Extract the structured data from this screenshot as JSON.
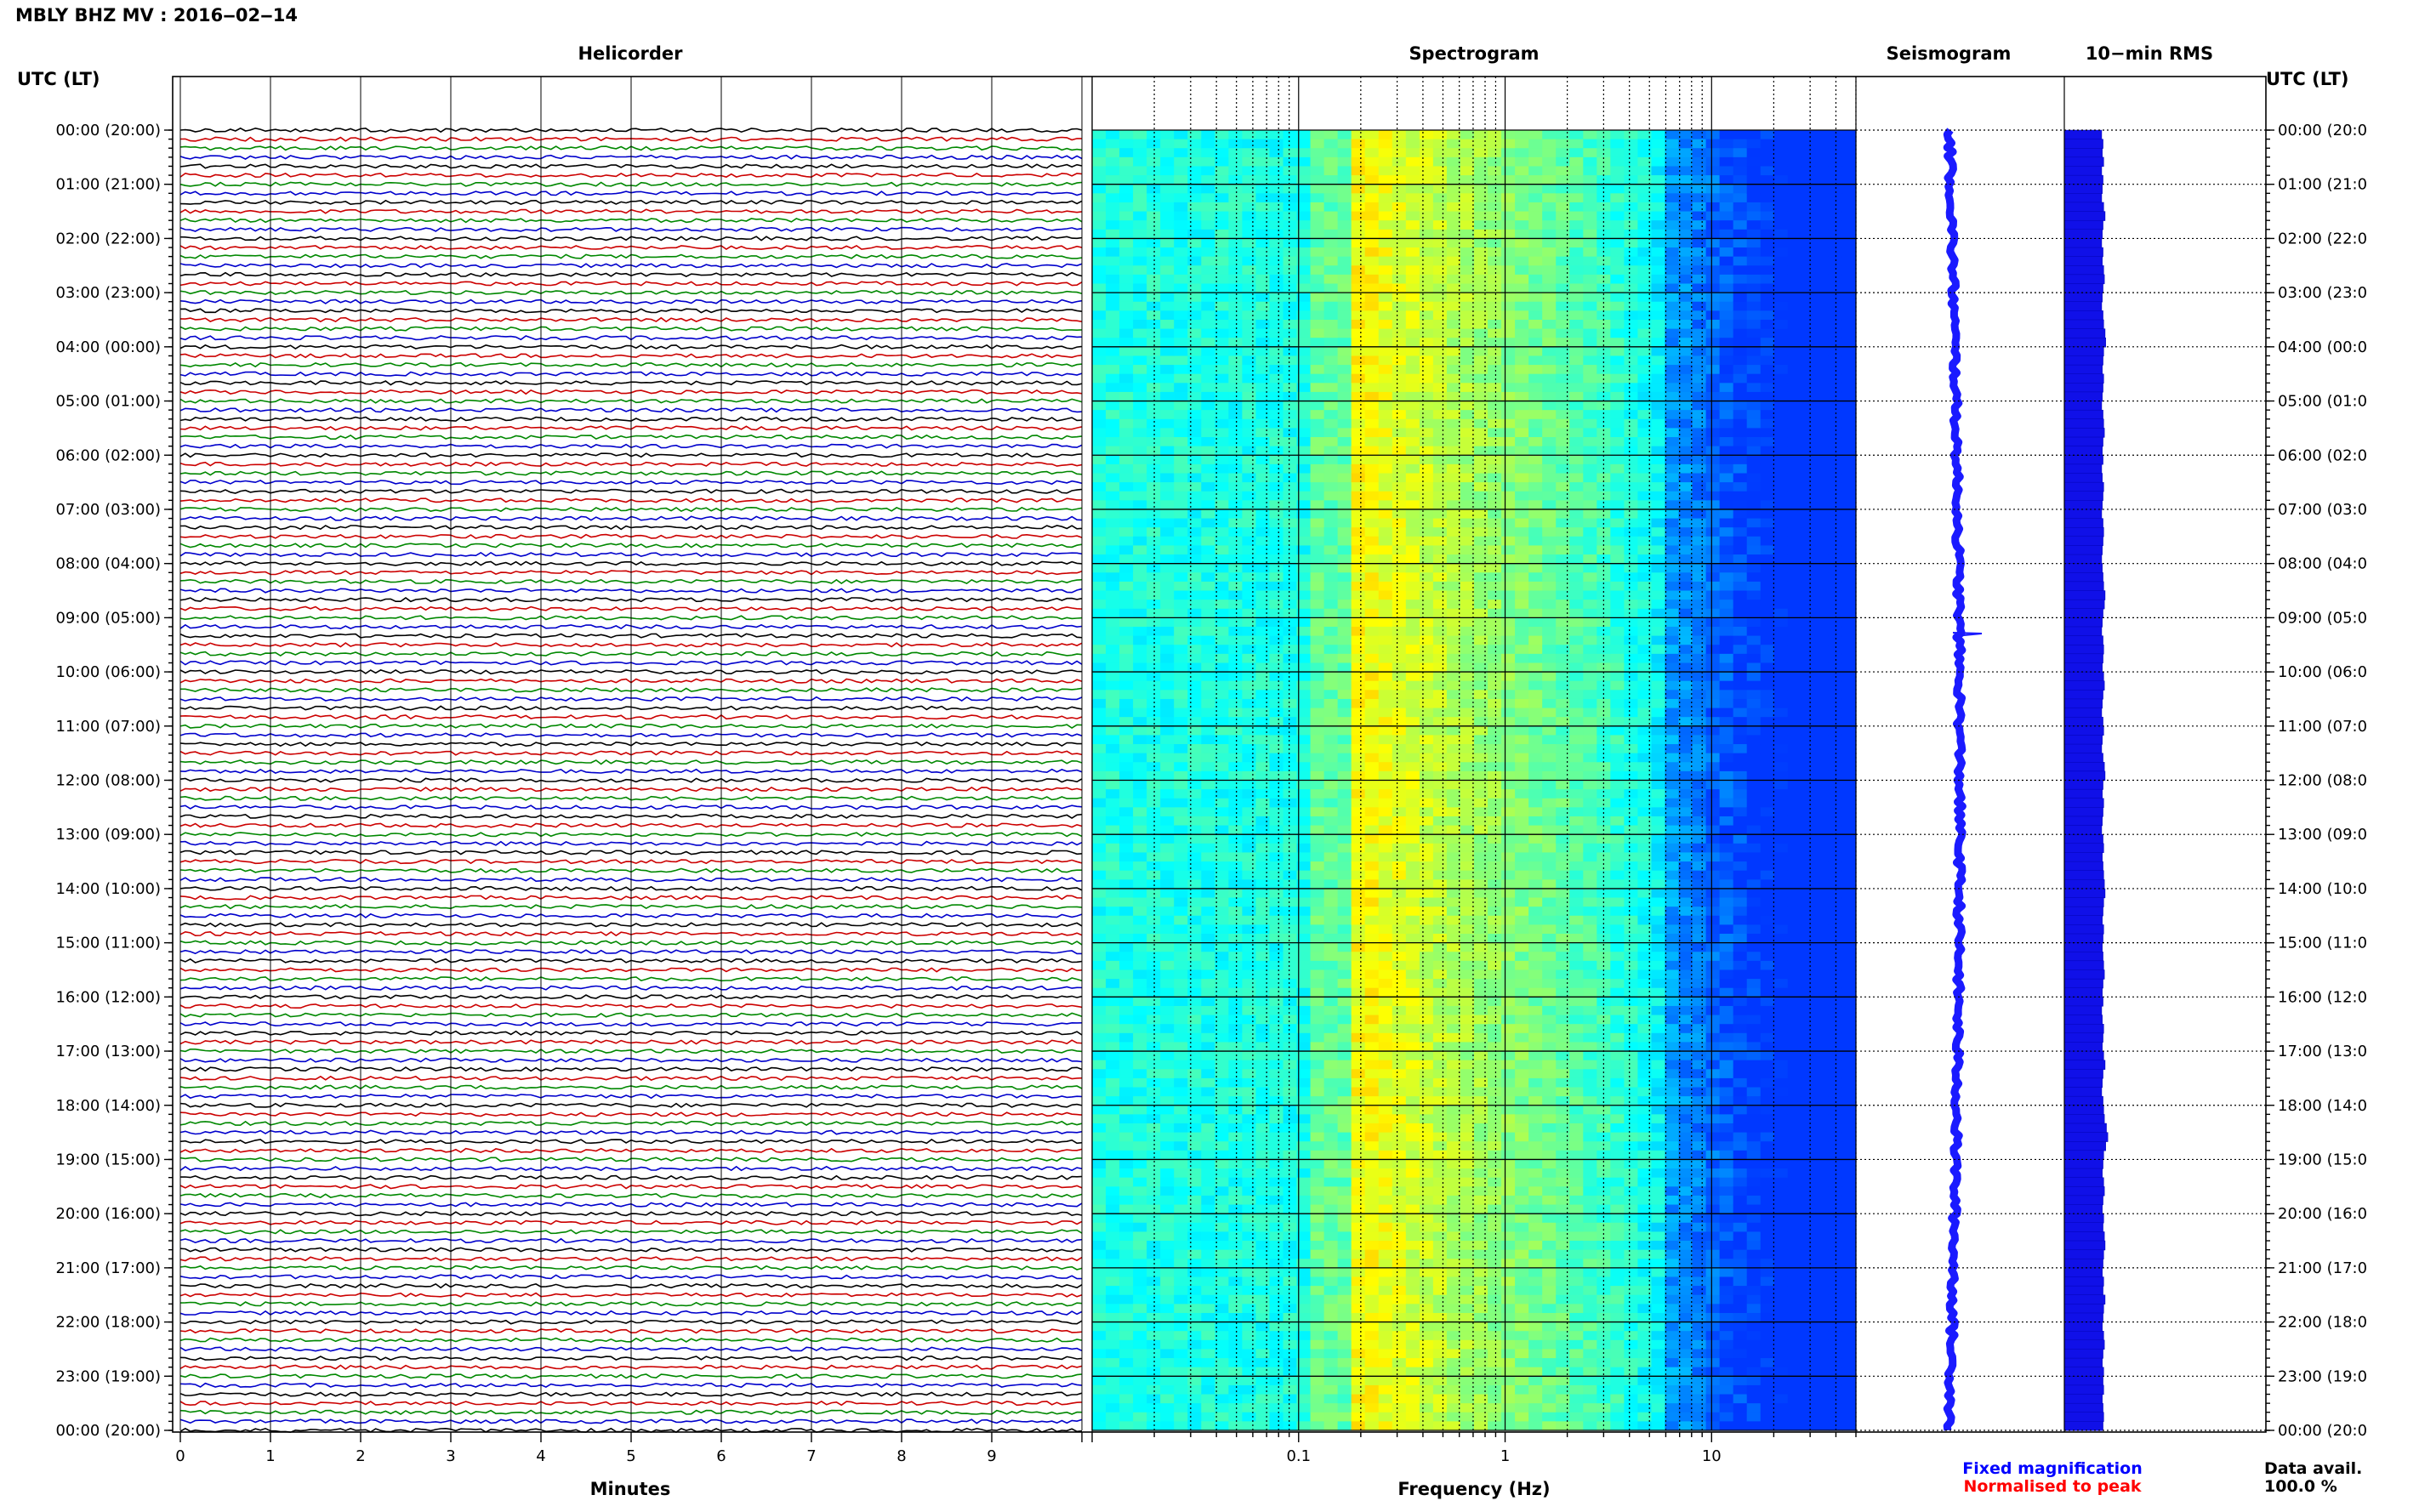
{
  "header": {
    "station_title": "MBLY BHZ MV : 2016‒02‒14"
  },
  "panels": {
    "helicorder": "Helicorder",
    "spectrogram": "Spectrogram",
    "seismogram": "Seismogram",
    "rms": "10−min RMS"
  },
  "axis": {
    "time_label": "UTC (LT)",
    "minutes_label": "Minutes",
    "frequency_label": "Frequency (Hz)"
  },
  "legend": {
    "fixed": "Fixed magnification",
    "normalised": "Normalised to peak",
    "fixed_color": "#0000ff",
    "normalised_color": "#ff0000"
  },
  "data_avail": {
    "label": "Data avail.",
    "value": "100.0 %"
  },
  "colors": {
    "trace_cycle": [
      "#000000",
      "#cc0000",
      "#008800",
      "#0000cc"
    ],
    "seismogram": "#1a1aff",
    "rms_bar": "#1010e8"
  },
  "chart_data": {
    "type": "helicorder",
    "time_ticks": [
      "00:00 (20:00)",
      "01:00 (21:00)",
      "02:00 (22:00)",
      "03:00 (23:00)",
      "04:00 (00:00)",
      "05:00 (01:00)",
      "06:00 (02:00)",
      "07:00 (03:00)",
      "08:00 (04:00)",
      "09:00 (05:00)",
      "10:00 (06:00)",
      "11:00 (07:00)",
      "12:00 (08:00)",
      "13:00 (09:00)",
      "14:00 (10:00)",
      "15:00 (11:00)",
      "16:00 (12:00)",
      "17:00 (13:00)",
      "18:00 (14:00)",
      "19:00 (15:00)",
      "20:00 (16:00)",
      "21:00 (17:00)",
      "22:00 (18:00)",
      "23:00 (19:00)",
      "00:00 (20:00)"
    ],
    "time_ticks_right": [
      "00:00 (20:0",
      "01:00 (21:0",
      "02:00 (22:0",
      "03:00 (23:0",
      "04:00 (00:0",
      "05:00 (01:0",
      "06:00 (02:0",
      "07:00 (03:0",
      "08:00 (04:0",
      "09:00 (05:0",
      "10:00 (06:0",
      "11:00 (07:0",
      "12:00 (08:0",
      "13:00 (09:0",
      "14:00 (10:0",
      "15:00 (11:0",
      "16:00 (12:0",
      "17:00 (13:0",
      "18:00 (14:0",
      "19:00 (15:0",
      "20:00 (16:0",
      "21:00 (17:0",
      "22:00 (18:0",
      "23:00 (19:0",
      "00:00 (20:0"
    ],
    "minutes_ticks": [
      "0",
      "1",
      "2",
      "3",
      "4",
      "5",
      "6",
      "7",
      "8",
      "9"
    ],
    "minutes_range": [
      0,
      10
    ],
    "traces_per_hour": 6,
    "total_traces": 144,
    "freq_ticks": [
      {
        "value": 0.1,
        "label": "0.1"
      },
      {
        "value": 1,
        "label": "1"
      },
      {
        "value": 10,
        "label": "10"
      }
    ],
    "freq_range": [
      0.01,
      50
    ],
    "freq_scale": "log",
    "spectrogram_note_peak_hz": 0.2,
    "rms_values": [
      0.55,
      0.57,
      0.56,
      0.58,
      0.55,
      0.57,
      0.56,
      0.55,
      0.58,
      0.6,
      0.57,
      0.56,
      0.55,
      0.57,
      0.56,
      0.58,
      0.59,
      0.57,
      0.56,
      0.55,
      0.57,
      0.58,
      0.6,
      0.61,
      0.58,
      0.57,
      0.56,
      0.58,
      0.57,
      0.56,
      0.55,
      0.57,
      0.58,
      0.59,
      0.57,
      0.56,
      0.57,
      0.55,
      0.56,
      0.58,
      0.57,
      0.56,
      0.55,
      0.57,
      0.58,
      0.57,
      0.56,
      0.55,
      0.56,
      0.57,
      0.58,
      0.6,
      0.59,
      0.57,
      0.56,
      0.55,
      0.57,
      0.58,
      0.57,
      0.56,
      0.58,
      0.59,
      0.57,
      0.56,
      0.55,
      0.57,
      0.58,
      0.56,
      0.55,
      0.57,
      0.59,
      0.6,
      0.57,
      0.56,
      0.58,
      0.57,
      0.56,
      0.55,
      0.57,
      0.58,
      0.56,
      0.57,
      0.58,
      0.59,
      0.6,
      0.58,
      0.57,
      0.56,
      0.58,
      0.57,
      0.56,
      0.57,
      0.58,
      0.59,
      0.57,
      0.56,
      0.57,
      0.55,
      0.56,
      0.58,
      0.57,
      0.56,
      0.58,
      0.6,
      0.57,
      0.56,
      0.55,
      0.57,
      0.58,
      0.59,
      0.62,
      0.64,
      0.61,
      0.58,
      0.57,
      0.56,
      0.58,
      0.59,
      0.57,
      0.56,
      0.58,
      0.57,
      0.59,
      0.6,
      0.58,
      0.57,
      0.56,
      0.58,
      0.57,
      0.6,
      0.58,
      0.57,
      0.56,
      0.58,
      0.59,
      0.57,
      0.56,
      0.58,
      0.57,
      0.58,
      0.56,
      0.57,
      0.58,
      0.57
    ]
  }
}
